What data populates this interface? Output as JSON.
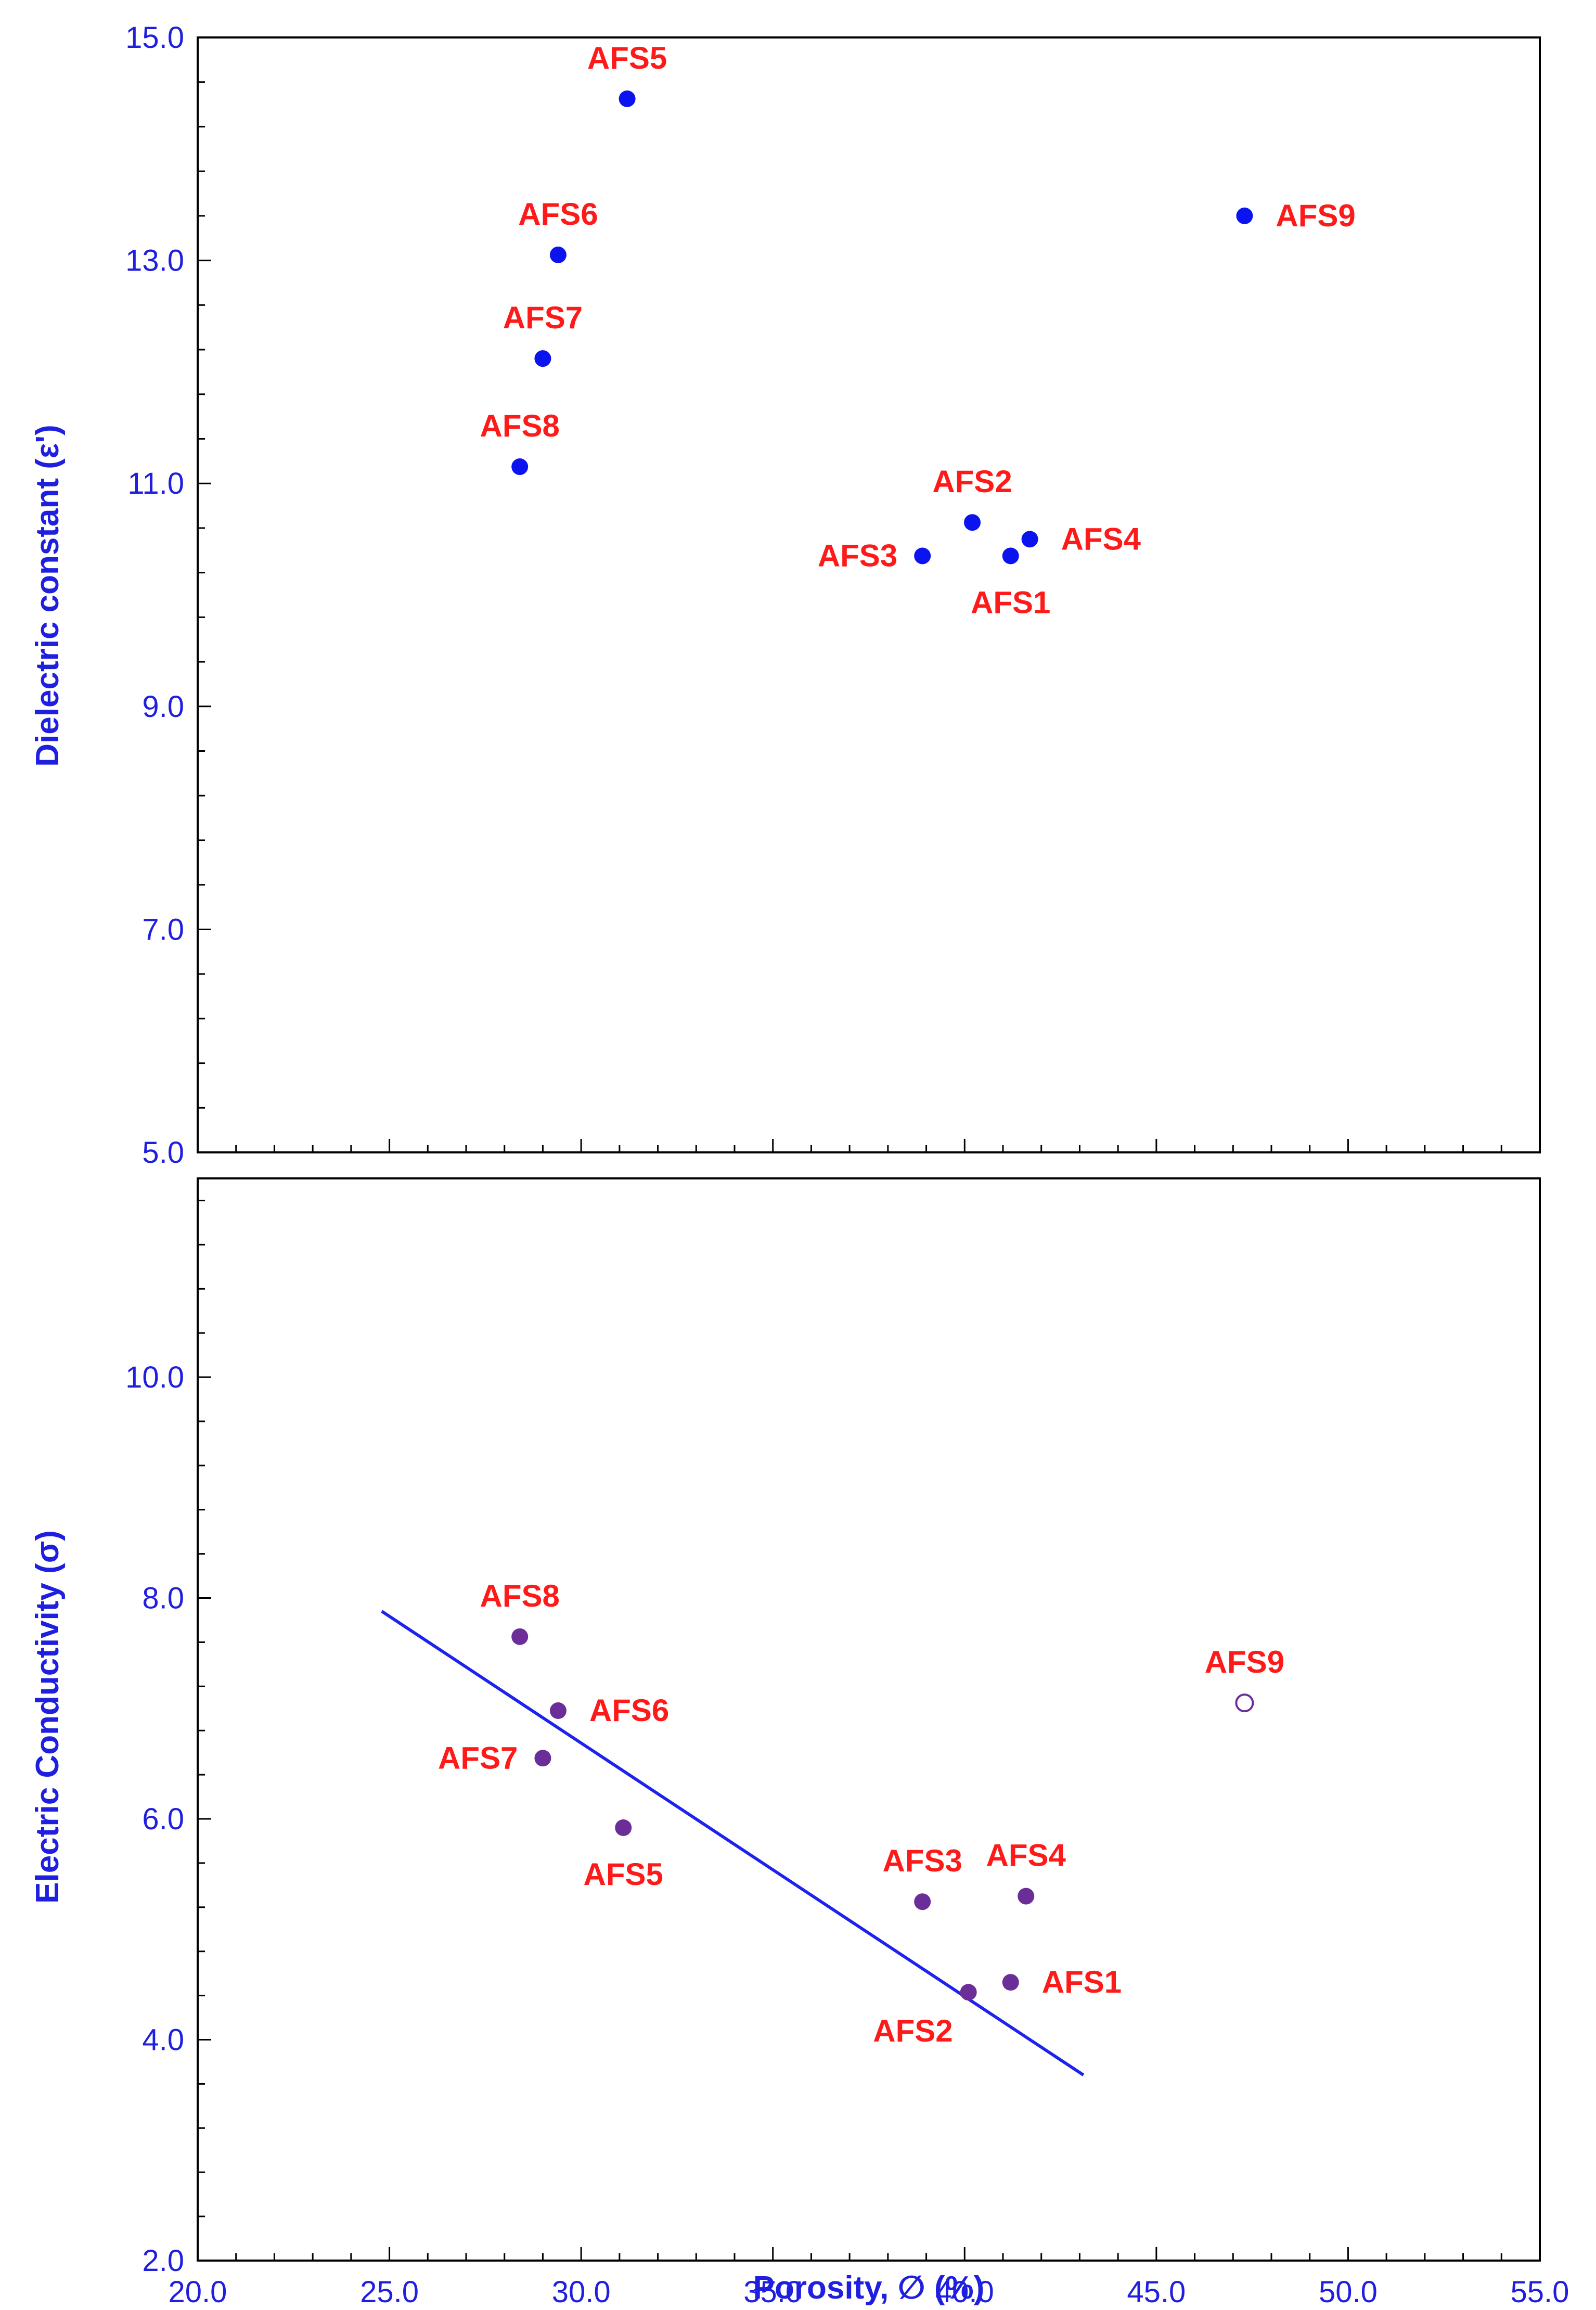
{
  "colors": {
    "axis_text": "#1f1fe0",
    "label_text": "#ff1a1a",
    "top_points": "#0b14ee",
    "bottom_points": "#6b2e99",
    "fit_line": "#1e22ee",
    "frame": "#000000"
  },
  "chart_data": [
    {
      "type": "scatter",
      "title": "",
      "xlabel": "",
      "ylabel": "Dielectric constant (ε')",
      "xlim": [
        20,
        55
      ],
      "ylim": [
        5,
        15
      ],
      "x_ticks": [
        20,
        25,
        30,
        35,
        40,
        45,
        50,
        55
      ],
      "y_ticks": [
        "5.0",
        "7.0",
        "9.0",
        "11.0",
        "13.0",
        "15.0"
      ],
      "y_tick_values": [
        5,
        7,
        9,
        11,
        13,
        15
      ],
      "x_tick_labels_shown": false,
      "points": [
        {
          "label": "AFS1",
          "x": 41.2,
          "y": 10.35,
          "label_pos": "below"
        },
        {
          "label": "AFS2",
          "x": 40.2,
          "y": 10.65,
          "label_pos": "above"
        },
        {
          "label": "AFS3",
          "x": 38.9,
          "y": 10.35,
          "label_pos": "left"
        },
        {
          "label": "AFS4",
          "x": 41.7,
          "y": 10.5,
          "label_pos": "right"
        },
        {
          "label": "AFS5",
          "x": 31.2,
          "y": 14.45,
          "label_pos": "above"
        },
        {
          "label": "AFS6",
          "x": 29.4,
          "y": 13.05,
          "label_pos": "above"
        },
        {
          "label": "AFS7",
          "x": 29.0,
          "y": 12.12,
          "label_pos": "above"
        },
        {
          "label": "AFS8",
          "x": 28.4,
          "y": 11.15,
          "label_pos": "above"
        },
        {
          "label": "AFS9",
          "x": 47.3,
          "y": 13.4,
          "label_pos": "right"
        }
      ]
    },
    {
      "type": "scatter",
      "title": "",
      "xlabel": "Porosity, ∅ (%)",
      "ylabel": "Electric Conductivity (σ)",
      "xlim": [
        20,
        55
      ],
      "ylim": [
        2,
        11.8
      ],
      "x_ticks": [
        "20.0",
        "25.0",
        "30.0",
        "35.0",
        "40.0",
        "45.0",
        "50.0",
        "55.0"
      ],
      "x_tick_values": [
        20,
        25,
        30,
        35,
        40,
        45,
        50,
        55
      ],
      "y_ticks": [
        "2.0",
        "4.0",
        "6.0",
        "8.0",
        "10.0"
      ],
      "y_tick_values": [
        2,
        4,
        6,
        8,
        10
      ],
      "points": [
        {
          "label": "AFS1",
          "x": 41.2,
          "y": 4.52,
          "label_pos": "right",
          "filled": true
        },
        {
          "label": "AFS2",
          "x": 40.1,
          "y": 4.43,
          "label_pos": "below-left",
          "filled": true
        },
        {
          "label": "AFS3",
          "x": 38.9,
          "y": 5.25,
          "label_pos": "above",
          "filled": true
        },
        {
          "label": "AFS4",
          "x": 41.6,
          "y": 5.3,
          "label_pos": "above",
          "filled": true
        },
        {
          "label": "AFS5",
          "x": 31.1,
          "y": 5.92,
          "label_pos": "below",
          "filled": true
        },
        {
          "label": "AFS6",
          "x": 29.4,
          "y": 6.98,
          "label_pos": "right",
          "filled": true
        },
        {
          "label": "AFS7",
          "x": 29.0,
          "y": 6.55,
          "label_pos": "left",
          "filled": true
        },
        {
          "label": "AFS8",
          "x": 28.4,
          "y": 7.65,
          "label_pos": "above",
          "filled": true
        },
        {
          "label": "AFS9",
          "x": 47.3,
          "y": 7.05,
          "label_pos": "above",
          "filled": false
        }
      ],
      "trendline": {
        "x": [
          24.8,
          43.1
        ],
        "y": [
          7.88,
          3.68
        ]
      }
    }
  ]
}
